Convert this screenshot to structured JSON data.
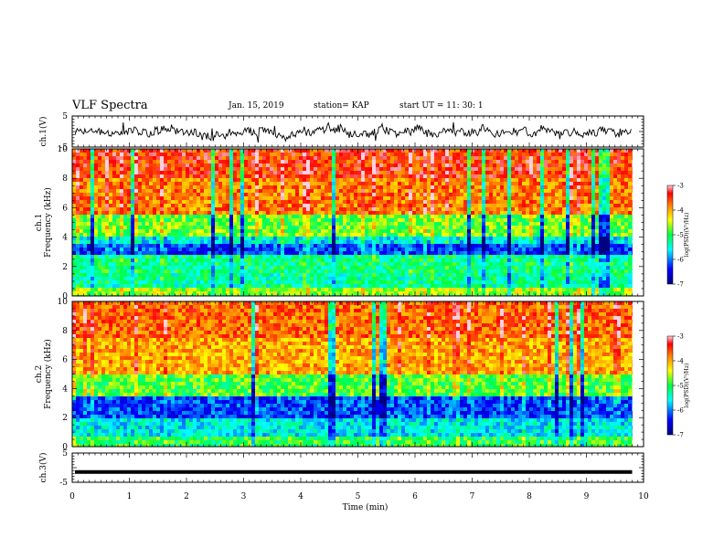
{
  "header": {
    "title": "VLF Spectra",
    "date": "Jan. 15, 2019",
    "station": "station= KAP",
    "start": "start  UT  =   11: 30: 1"
  },
  "chart_data": [
    {
      "type": "line",
      "panel": "ch1-waveform",
      "ylabel": "ch.1(V)",
      "ylim": [
        -5,
        5
      ],
      "yticks": [
        5,
        -5
      ],
      "xlim": [
        0,
        10
      ],
      "x_extent": [
        0,
        9.8
      ],
      "note_series": "continuous noisy waveform spanning roughly -2.5 to 2.5 V"
    },
    {
      "type": "heatmap",
      "panel": "ch1-spectrogram",
      "ylabel": "ch.1\nFrequency (kHz)",
      "ylim": [
        0,
        10
      ],
      "yticks": [
        0,
        2,
        4,
        6,
        8,
        10
      ],
      "xlim": [
        0,
        10
      ],
      "x_extent": [
        0,
        9.8
      ],
      "colorbar": {
        "label": "log(PSD)(V²/Hz)",
        "range": [
          -7,
          -3
        ],
        "ticks": [
          -3,
          -4,
          -5,
          -6,
          -7
        ]
      },
      "bands": [
        {
          "f_range": [
            8,
            10
          ],
          "logpsd": -3.5
        },
        {
          "f_range": [
            5.5,
            8
          ],
          "logpsd": -3.8
        },
        {
          "f_range": [
            4,
            5.5
          ],
          "logpsd": -4.8
        },
        {
          "f_range": [
            3.5,
            4
          ],
          "logpsd": -5.6
        },
        {
          "f_range": [
            2.8,
            3.5
          ],
          "logpsd": -6.2
        },
        {
          "f_range": [
            1.5,
            2.8
          ],
          "logpsd": -5.2
        },
        {
          "f_range": [
            0.5,
            1.5
          ],
          "logpsd": -5.3
        },
        {
          "f_range": [
            0,
            0.5
          ],
          "logpsd": -4.6
        }
      ]
    },
    {
      "type": "heatmap",
      "panel": "ch2-spectrogram",
      "ylabel": "ch.2\nFrequency (kHz)",
      "ylim": [
        0,
        10
      ],
      "yticks": [
        0,
        2,
        4,
        6,
        8,
        10
      ],
      "xlim": [
        0,
        10
      ],
      "x_extent": [
        0,
        9.8
      ],
      "colorbar": {
        "label": "log(PSD)(V²/Hz)",
        "range": [
          -7,
          -3
        ],
        "ticks": [
          -3,
          -4,
          -5,
          -6,
          -7
        ]
      },
      "bands": [
        {
          "f_range": [
            7.5,
            10
          ],
          "logpsd": -3.7
        },
        {
          "f_range": [
            5,
            7.5
          ],
          "logpsd": -4.0
        },
        {
          "f_range": [
            3.5,
            5
          ],
          "logpsd": -4.9
        },
        {
          "f_range": [
            2,
            3.5
          ],
          "logpsd": -6.2
        },
        {
          "f_range": [
            0.8,
            2
          ],
          "logpsd": -5.6
        },
        {
          "f_range": [
            0,
            0.8
          ],
          "logpsd": -5.0
        }
      ]
    },
    {
      "type": "line",
      "panel": "ch3-waveform",
      "ylabel": "ch.3(V)",
      "ylim": [
        -5,
        5
      ],
      "yticks": [
        5,
        -5
      ],
      "xlim": [
        0,
        10
      ],
      "x_extent": [
        0,
        9.8
      ],
      "constant_value": -1.5,
      "xlabel": "Time (min)",
      "xticks": [
        0,
        1,
        2,
        3,
        4,
        5,
        6,
        7,
        8,
        9,
        10
      ]
    }
  ],
  "colors": {
    "trace": "#000000",
    "colormap": [
      "#0000a0",
      "#0000ff",
      "#00ffff",
      "#00ff40",
      "#ffff00",
      "#ff8000",
      "#ff0000",
      "#ff80a0"
    ]
  }
}
